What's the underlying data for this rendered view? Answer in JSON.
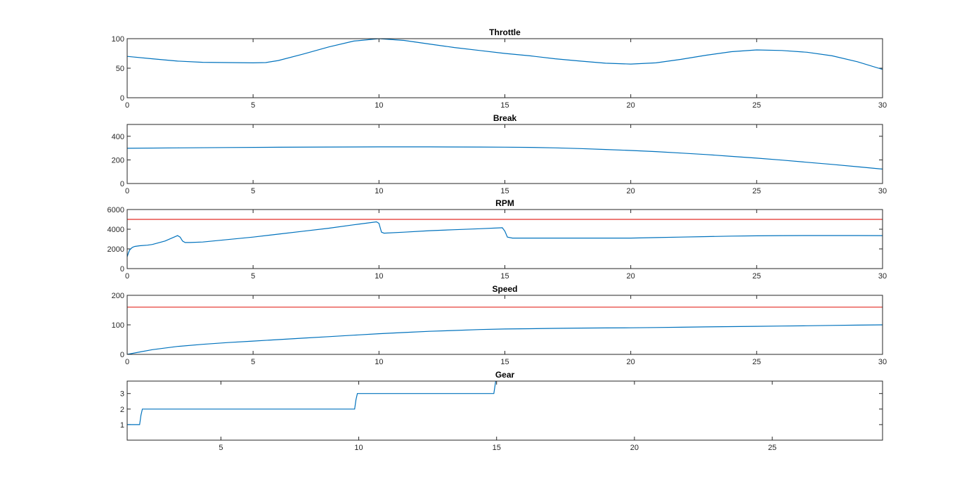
{
  "colors": {
    "series": "#0072BD",
    "reference": "#E8504A",
    "axis": "#262626"
  },
  "chart_data": [
    {
      "type": "line",
      "title": "Throttle",
      "xlim": [
        0,
        30
      ],
      "ylim": [
        0,
        100
      ],
      "xticks": [
        0,
        5,
        10,
        15,
        20,
        25,
        30
      ],
      "yticks": [
        0,
        50,
        100
      ],
      "grid": false,
      "series": [
        {
          "x": [
            0,
            1,
            2,
            3,
            4,
            5,
            5.5,
            6,
            7,
            8,
            9,
            10,
            11,
            12,
            13,
            14,
            15,
            16,
            17,
            18,
            19,
            20,
            21,
            22,
            23,
            24,
            25,
            26,
            27,
            28,
            29,
            30
          ],
          "y": [
            70,
            66,
            62,
            60,
            59.5,
            59,
            59.5,
            63,
            74,
            86,
            96,
            100,
            97,
            91,
            85,
            80,
            75,
            71,
            66,
            62,
            58.5,
            57,
            59,
            65,
            72,
            78,
            81,
            80,
            77,
            71,
            61,
            48
          ]
        }
      ]
    },
    {
      "type": "line",
      "title": "Break",
      "xlim": [
        0,
        30
      ],
      "ylim": [
        0,
        500
      ],
      "xticks": [
        0,
        5,
        10,
        15,
        20,
        25,
        30
      ],
      "yticks": [
        0,
        200,
        400
      ],
      "grid": false,
      "series": [
        {
          "x": [
            0,
            2,
            4,
            6,
            8,
            10,
            12,
            14,
            15,
            16,
            17,
            18,
            19,
            20,
            21,
            22,
            23,
            24,
            25,
            26,
            27,
            28,
            29,
            30
          ],
          "y": [
            298,
            302,
            305,
            307,
            309,
            310,
            310,
            309,
            308,
            306,
            302,
            296,
            288,
            280,
            270,
            258,
            245,
            230,
            215,
            198,
            180,
            162,
            142,
            122
          ]
        }
      ]
    },
    {
      "type": "line",
      "title": "RPM",
      "xlim": [
        0,
        30
      ],
      "ylim": [
        0,
        6000
      ],
      "xticks": [
        0,
        5,
        10,
        15,
        20,
        25,
        30
      ],
      "yticks": [
        0,
        2000,
        4000,
        6000
      ],
      "grid": false,
      "series": [
        {
          "x": [
            0,
            0.05,
            0.1,
            0.2,
            0.3,
            0.5,
            0.8,
            1,
            1.5,
            2,
            2.1,
            2.2,
            2.3,
            2.5,
            3,
            4,
            5,
            6,
            7,
            8,
            9,
            9.9,
            10,
            10.1,
            10.2,
            11,
            12,
            13,
            14,
            14.9,
            15,
            15.1,
            15.3,
            16,
            17,
            18,
            19,
            20,
            21,
            22,
            23,
            24,
            25,
            26,
            27,
            28,
            29,
            30
          ],
          "y": [
            1200,
            1600,
            1900,
            2150,
            2250,
            2320,
            2380,
            2450,
            2800,
            3350,
            3200,
            2800,
            2650,
            2650,
            2700,
            2950,
            3200,
            3500,
            3800,
            4100,
            4450,
            4750,
            4600,
            3700,
            3600,
            3700,
            3850,
            3950,
            4050,
            4150,
            3800,
            3200,
            3100,
            3100,
            3100,
            3100,
            3100,
            3100,
            3150,
            3200,
            3250,
            3300,
            3330,
            3350,
            3360,
            3360,
            3360,
            3350
          ]
        }
      ],
      "reference_line": 5000
    },
    {
      "type": "line",
      "title": "Speed",
      "xlim": [
        0,
        30
      ],
      "ylim": [
        0,
        200
      ],
      "xticks": [
        0,
        5,
        10,
        15,
        20,
        25,
        30
      ],
      "yticks": [
        0,
        100,
        200
      ],
      "grid": false,
      "series": [
        {
          "x": [
            0,
            0.5,
            1,
            2,
            3,
            4,
            5,
            6,
            7,
            8,
            9,
            10,
            11,
            12,
            13,
            14,
            15,
            16,
            17,
            18,
            19,
            20,
            21,
            22,
            23,
            24,
            25,
            26,
            27,
            28,
            29,
            30
          ],
          "y": [
            0,
            8,
            16,
            27,
            34,
            40,
            45,
            50,
            55,
            60,
            65,
            70,
            74,
            78,
            81,
            84,
            86,
            87,
            88,
            89,
            89.5,
            90,
            91,
            92,
            93,
            94,
            95,
            96,
            97,
            98,
            99,
            100
          ]
        }
      ],
      "reference_line": 160
    },
    {
      "type": "line",
      "title": "Gear",
      "xlim": [
        1.6,
        29.0
      ],
      "ylim": [
        0,
        3.8
      ],
      "xticks": [
        5,
        10,
        15,
        20,
        25
      ],
      "yticks": [
        1,
        2,
        3
      ],
      "grid": false,
      "series": [
        {
          "x": [
            1.6,
            2.05,
            2.1,
            2.15,
            9.85,
            9.9,
            9.95,
            14.9,
            14.95,
            15.0,
            15.05
          ],
          "y": [
            1,
            1,
            1.6,
            2,
            2,
            2.6,
            3,
            3,
            3.6,
            4.2,
            4.2
          ]
        }
      ]
    }
  ]
}
